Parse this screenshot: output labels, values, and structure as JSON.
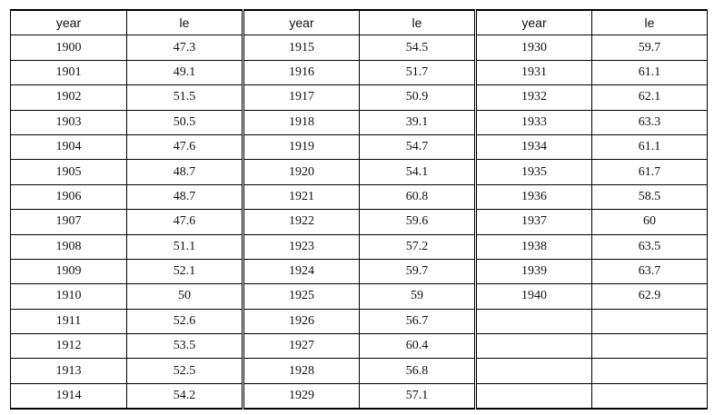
{
  "headers": [
    "year",
    "le",
    "year",
    "le",
    "year",
    "le"
  ],
  "rows": [
    [
      "1900",
      "47.3",
      "1915",
      "54.5",
      "1930",
      "59.7"
    ],
    [
      "1901",
      "49.1",
      "1916",
      "51.7",
      "1931",
      "61.1"
    ],
    [
      "1902",
      "51.5",
      "1917",
      "50.9",
      "1932",
      "62.1"
    ],
    [
      "1903",
      "50.5",
      "1918",
      "39.1",
      "1933",
      "63.3"
    ],
    [
      "1904",
      "47.6",
      "1919",
      "54.7",
      "1934",
      "61.1"
    ],
    [
      "1905",
      "48.7",
      "1920",
      "54.1",
      "1935",
      "61.7"
    ],
    [
      "1906",
      "48.7",
      "1921",
      "60.8",
      "1936",
      "58.5"
    ],
    [
      "1907",
      "47.6",
      "1922",
      "59.6",
      "1937",
      "60"
    ],
    [
      "1908",
      "51.1",
      "1923",
      "57.2",
      "1938",
      "63.5"
    ],
    [
      "1909",
      "52.1",
      "1924",
      "59.7",
      "1939",
      "63.7"
    ],
    [
      "1910",
      "50",
      "1925",
      "59",
      "1940",
      "62.9"
    ],
    [
      "1911",
      "52.6",
      "1926",
      "56.7",
      "",
      ""
    ],
    [
      "1912",
      "53.5",
      "1927",
      "60.4",
      "",
      ""
    ],
    [
      "1913",
      "52.5",
      "1928",
      "56.8",
      "",
      ""
    ],
    [
      "1914",
      "54.2",
      "1929",
      "57.1",
      "",
      ""
    ]
  ]
}
